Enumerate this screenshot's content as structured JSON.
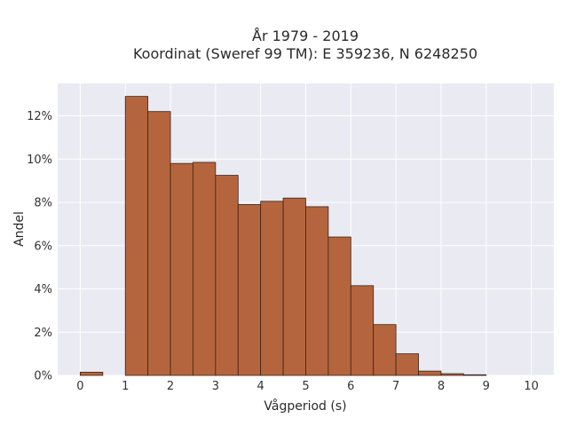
{
  "chart_data": {
    "type": "bar",
    "title": [
      "År 1979 - 2019",
      "Koordinat (Sweref 99 TM): E 359236, N 6248250"
    ],
    "xlabel": "Vågperiod (s)",
    "ylabel": "Andel",
    "xlim": [
      -0.5,
      10.5
    ],
    "ylim": [
      0,
      13.5
    ],
    "x_ticks": [
      0,
      1,
      2,
      3,
      4,
      5,
      6,
      7,
      8,
      9,
      10
    ],
    "y_ticks": [
      0,
      2,
      4,
      6,
      8,
      10,
      12
    ],
    "y_tick_format": "percent",
    "bin_width": 0.5,
    "bins": [
      {
        "start": 0.0,
        "value": 0.15
      },
      {
        "start": 0.5,
        "value": 0.0
      },
      {
        "start": 1.0,
        "value": 12.9
      },
      {
        "start": 1.5,
        "value": 12.2
      },
      {
        "start": 2.0,
        "value": 9.8
      },
      {
        "start": 2.5,
        "value": 9.85
      },
      {
        "start": 3.0,
        "value": 9.25
      },
      {
        "start": 3.5,
        "value": 7.9
      },
      {
        "start": 4.0,
        "value": 8.05
      },
      {
        "start": 4.5,
        "value": 8.2
      },
      {
        "start": 5.0,
        "value": 7.8
      },
      {
        "start": 5.5,
        "value": 6.4
      },
      {
        "start": 6.0,
        "value": 4.15
      },
      {
        "start": 6.5,
        "value": 2.35
      },
      {
        "start": 7.0,
        "value": 1.0
      },
      {
        "start": 7.5,
        "value": 0.2
      },
      {
        "start": 8.0,
        "value": 0.08
      },
      {
        "start": 8.5,
        "value": 0.03
      }
    ],
    "bar_color": "#b5653d",
    "bar_edge_color": "#3b2418",
    "background_color": "#eaeaf2",
    "grid": true
  }
}
